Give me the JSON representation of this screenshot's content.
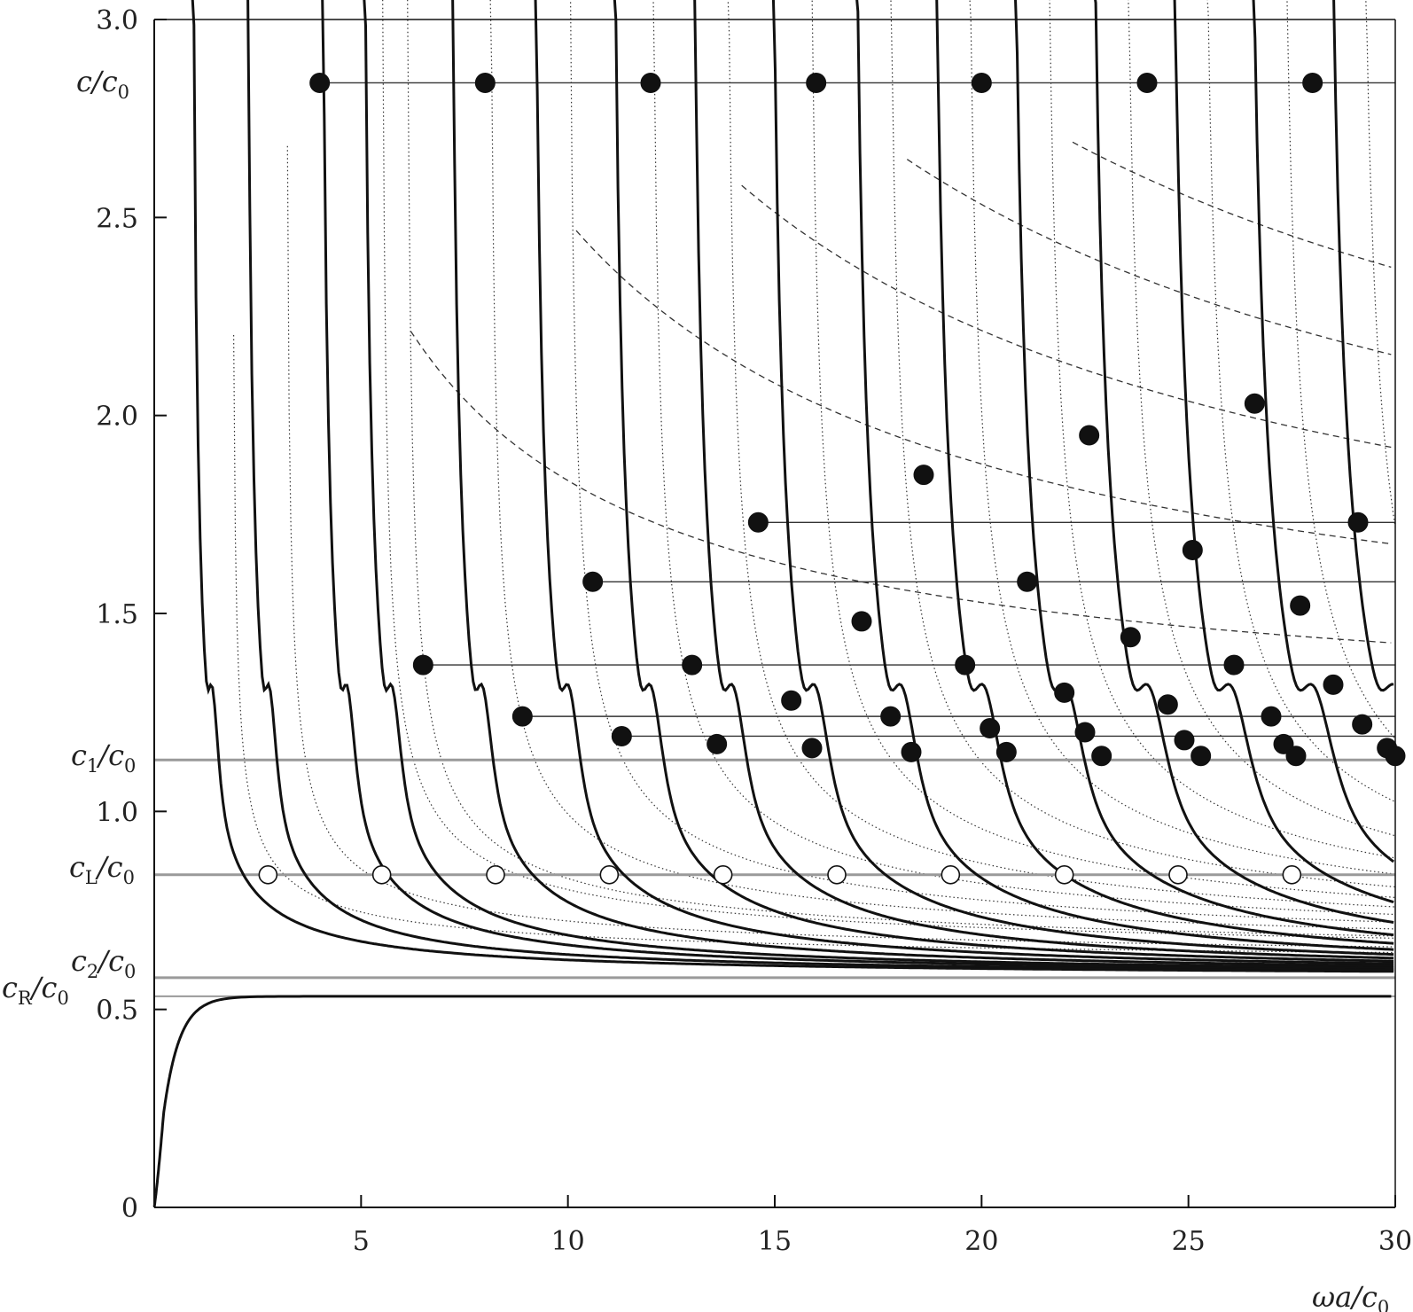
{
  "chart_data": {
    "type": "line",
    "title": "",
    "xlabel": "ωa/c0",
    "ylabel": "c/c0",
    "xlim": [
      0,
      30
    ],
    "ylim": [
      0,
      3.0
    ],
    "x_ticks": [
      5,
      10,
      15,
      20,
      25,
      30
    ],
    "y_ticks": [
      0,
      0.5,
      1.0,
      1.5,
      2.0,
      2.5,
      3.0
    ],
    "x_tick_labels": [
      "5",
      "10",
      "15",
      "20",
      "25",
      "30"
    ],
    "y_tick_labels": [
      "0",
      "0.5",
      "1.0",
      "1.5",
      "2.0",
      "2.5",
      "3.0"
    ],
    "grid": false,
    "reference_lines": [
      {
        "name": "c1/c0",
        "value": 1.13
      },
      {
        "name": "cL/c0",
        "value": 0.84
      },
      {
        "name": "c2/c0",
        "value": 0.58
      },
      {
        "name": "cR/c0",
        "value": 0.533
      }
    ],
    "rayleigh_branch": {
      "asymptote": 0.533
    },
    "solid_branches": {
      "upper_asymptote": 0.58,
      "start_x": [
        0.9,
        2.2,
        4.0,
        5.0,
        7.1,
        9.1,
        11.0,
        12.9,
        14.8,
        16.8,
        18.7,
        20.6,
        22.5,
        24.4,
        26.3,
        28.2,
        30.1
      ],
      "shoulder_c": 1.12
    },
    "dotted_curves": {
      "start_x": [
        1.9,
        3.2,
        5.5,
        6.1,
        8.1,
        10.0,
        12.0,
        13.8,
        15.8,
        17.7,
        19.6,
        21.5,
        23.4,
        25.3,
        27.2,
        29.1
      ]
    },
    "dashed_curves": {
      "anchors": [
        [
          4.0,
          2.84
        ],
        [
          8.0,
          2.84
        ],
        [
          12.0,
          2.84
        ],
        [
          16.0,
          2.84
        ],
        [
          20.0,
          2.84
        ],
        [
          24.0,
          2.84
        ],
        [
          28.0,
          2.84
        ]
      ],
      "asymptotes": [
        1.22,
        1.27,
        1.33,
        1.4,
        1.48
      ]
    },
    "filled_markers": [
      {
        "x": 4.0,
        "y": 2.84
      },
      {
        "x": 8.0,
        "y": 2.84
      },
      {
        "x": 12.0,
        "y": 2.84
      },
      {
        "x": 16.0,
        "y": 2.84
      },
      {
        "x": 20.0,
        "y": 2.84
      },
      {
        "x": 24.0,
        "y": 2.84
      },
      {
        "x": 28.0,
        "y": 2.84
      },
      {
        "x": 26.6,
        "y": 2.03
      },
      {
        "x": 22.6,
        "y": 1.95
      },
      {
        "x": 18.6,
        "y": 1.85
      },
      {
        "x": 14.6,
        "y": 1.73
      },
      {
        "x": 29.1,
        "y": 1.73
      },
      {
        "x": 25.1,
        "y": 1.66
      },
      {
        "x": 10.6,
        "y": 1.58
      },
      {
        "x": 21.1,
        "y": 1.58
      },
      {
        "x": 27.7,
        "y": 1.52
      },
      {
        "x": 17.1,
        "y": 1.48
      },
      {
        "x": 23.6,
        "y": 1.44
      },
      {
        "x": 6.5,
        "y": 1.37
      },
      {
        "x": 13.0,
        "y": 1.37
      },
      {
        "x": 19.6,
        "y": 1.37
      },
      {
        "x": 26.1,
        "y": 1.37
      },
      {
        "x": 28.5,
        "y": 1.32
      },
      {
        "x": 22.0,
        "y": 1.3
      },
      {
        "x": 15.4,
        "y": 1.28
      },
      {
        "x": 24.5,
        "y": 1.27
      },
      {
        "x": 8.9,
        "y": 1.24
      },
      {
        "x": 17.8,
        "y": 1.24
      },
      {
        "x": 27.0,
        "y": 1.24
      },
      {
        "x": 29.2,
        "y": 1.22
      },
      {
        "x": 20.2,
        "y": 1.21
      },
      {
        "x": 22.5,
        "y": 1.2
      },
      {
        "x": 11.3,
        "y": 1.19
      },
      {
        "x": 24.9,
        "y": 1.18
      },
      {
        "x": 27.3,
        "y": 1.17
      },
      {
        "x": 13.6,
        "y": 1.17
      },
      {
        "x": 29.8,
        "y": 1.16
      },
      {
        "x": 15.9,
        "y": 1.16
      },
      {
        "x": 18.3,
        "y": 1.15
      },
      {
        "x": 20.6,
        "y": 1.15
      },
      {
        "x": 22.9,
        "y": 1.14
      },
      {
        "x": 25.3,
        "y": 1.14
      },
      {
        "x": 27.6,
        "y": 1.14
      },
      {
        "x": 30.0,
        "y": 1.14
      }
    ],
    "open_markers": [
      {
        "x": 2.75,
        "y": 0.84
      },
      {
        "x": 5.5,
        "y": 0.84
      },
      {
        "x": 8.25,
        "y": 0.84
      },
      {
        "x": 11.0,
        "y": 0.84
      },
      {
        "x": 13.75,
        "y": 0.84
      },
      {
        "x": 16.5,
        "y": 0.84
      },
      {
        "x": 19.25,
        "y": 0.84
      },
      {
        "x": 22.0,
        "y": 0.84
      },
      {
        "x": 24.75,
        "y": 0.84
      },
      {
        "x": 27.5,
        "y": 0.84
      }
    ],
    "horizontal_segments": [
      {
        "y": 2.84,
        "x_from": 4.0,
        "x_to": 30
      },
      {
        "y": 1.73,
        "x_from": 14.6,
        "x_to": 30
      },
      {
        "y": 1.58,
        "x_from": 10.6,
        "x_to": 30
      },
      {
        "y": 1.37,
        "x_from": 6.5,
        "x_to": 30
      },
      {
        "y": 1.24,
        "x_from": 8.9,
        "x_to": 30
      },
      {
        "y": 1.19,
        "x_from": 11.3,
        "x_to": 30
      }
    ]
  }
}
